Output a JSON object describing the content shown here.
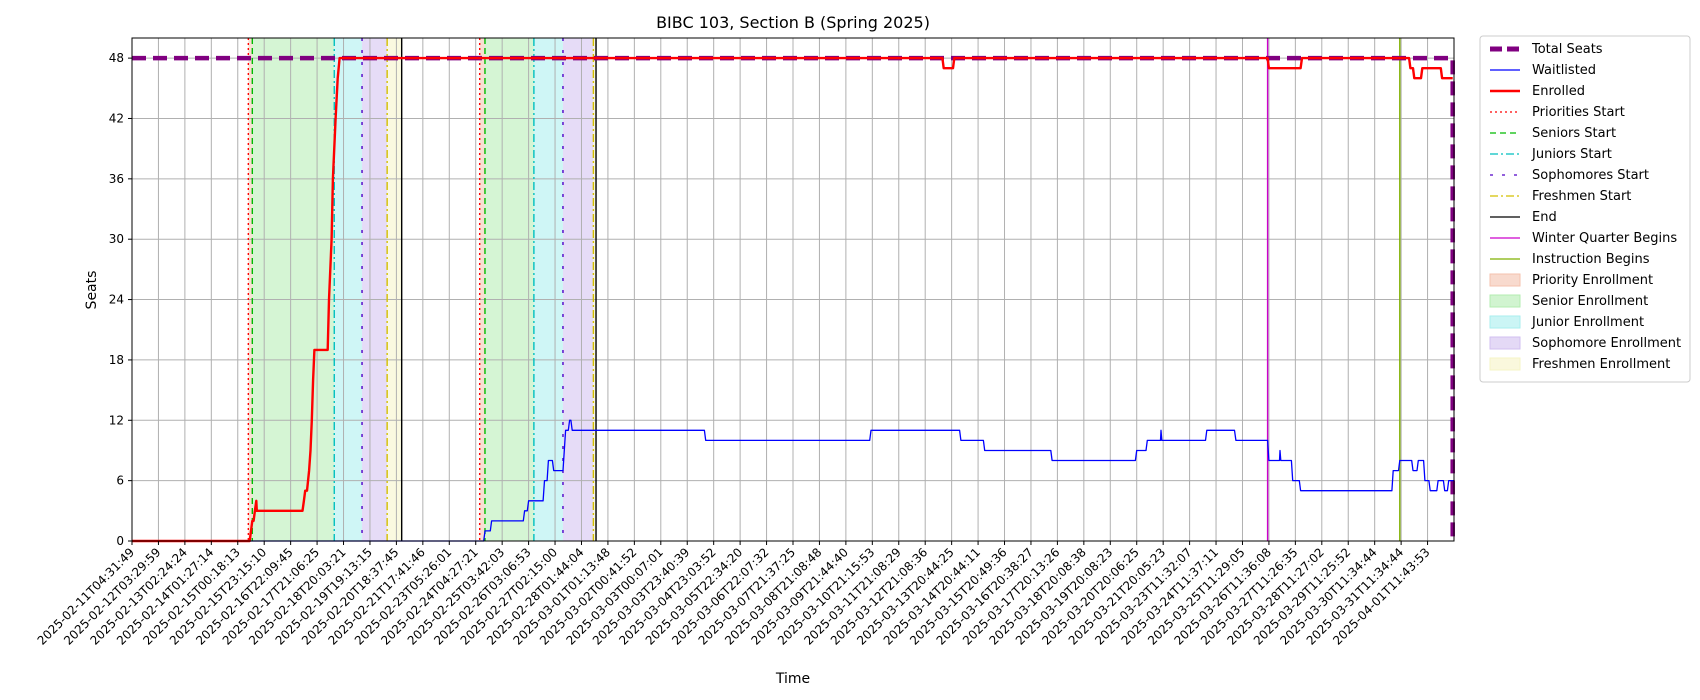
{
  "chart_data": {
    "type": "line",
    "title": "BIBC 103, Section B (Spring 2025)",
    "xlabel": "Time",
    "ylabel": "Seats",
    "ylim": [
      0,
      50
    ],
    "yticks": [
      0,
      6,
      12,
      18,
      24,
      30,
      36,
      42,
      48
    ],
    "grid": true,
    "legend_position": "outside-right",
    "x_tick_labels": [
      "2025-02-11T04:31:49",
      "2025-02-12T03:29:59",
      "2025-02-13T02:24:24",
      "2025-02-14T01:27:14",
      "2025-02-15T00:18:13",
      "2025-02-15T23:15:10",
      "2025-02-16T22:09:45",
      "2025-02-17T21:06:25",
      "2025-02-18T20:03:21",
      "2025-02-19T19:13:15",
      "2025-02-20T18:37:45",
      "2025-02-21T17:41:46",
      "2025-02-23T05:26:01",
      "2025-02-24T04:27:21",
      "2025-02-25T03:42:03",
      "2025-02-26T03:06:53",
      "2025-02-27T02:15:00",
      "2025-02-28T01:44:04",
      "2025-03-01T01:13:48",
      "2025-03-02T00:41:52",
      "2025-03-03T00:07:01",
      "2025-03-03T23:40:39",
      "2025-03-04T23:03:52",
      "2025-03-05T22:34:20",
      "2025-03-06T22:07:32",
      "2025-03-07T21:37:25",
      "2025-03-08T21:08:48",
      "2025-03-09T21:44:40",
      "2025-03-10T21:15:53",
      "2025-03-11T21:08:29",
      "2025-03-12T21:08:36",
      "2025-03-13T20:44:25",
      "2025-03-14T20:44:11",
      "2025-03-15T20:49:36",
      "2025-03-16T20:38:27",
      "2025-03-17T20:13:26",
      "2025-03-18T20:08:38",
      "2025-03-19T20:08:23",
      "2025-03-20T20:06:25",
      "2025-03-21T20:05:23",
      "2025-03-23T11:32:07",
      "2025-03-24T11:37:11",
      "2025-03-25T11:29:05",
      "2025-03-26T11:36:08",
      "2025-03-27T11:26:35",
      "2025-03-28T11:27:02",
      "2025-03-29T11:25:52",
      "2025-03-30T11:34:44",
      "2025-03-31T11:34:44",
      "2025-04-01T11:43:53"
    ],
    "x_range": [
      0,
      50
    ],
    "series": [
      {
        "name": "Total Seats",
        "color": "#800080",
        "dash": "dashed",
        "width": "thick",
        "points": [
          [
            0,
            48
          ],
          [
            49.95,
            48
          ],
          [
            49.95,
            0
          ]
        ]
      },
      {
        "name": "Waitlisted",
        "color": "#0000ff",
        "dash": "solid",
        "width": "thin",
        "points": [
          [
            0,
            0
          ],
          [
            13.3,
            0
          ],
          [
            13.35,
            1
          ],
          [
            13.55,
            1
          ],
          [
            13.6,
            2
          ],
          [
            14.8,
            2
          ],
          [
            14.85,
            3
          ],
          [
            14.95,
            3
          ],
          [
            15.0,
            4
          ],
          [
            15.55,
            4
          ],
          [
            15.6,
            6
          ],
          [
            15.7,
            6
          ],
          [
            15.75,
            8
          ],
          [
            15.9,
            8
          ],
          [
            15.95,
            7
          ],
          [
            16.3,
            7
          ],
          [
            16.35,
            9
          ],
          [
            16.4,
            11
          ],
          [
            16.5,
            11
          ],
          [
            16.55,
            12
          ],
          [
            16.6,
            12
          ],
          [
            16.65,
            11
          ],
          [
            21.65,
            11
          ],
          [
            21.7,
            10
          ],
          [
            27.9,
            10
          ],
          [
            27.95,
            11
          ],
          [
            31.3,
            11
          ],
          [
            31.35,
            10
          ],
          [
            32.2,
            10
          ],
          [
            32.25,
            9
          ],
          [
            34.75,
            9
          ],
          [
            34.8,
            8
          ],
          [
            37.95,
            8
          ],
          [
            38.0,
            9
          ],
          [
            38.35,
            9
          ],
          [
            38.4,
            10
          ],
          [
            38.9,
            10
          ],
          [
            38.92,
            11
          ],
          [
            38.95,
            10
          ],
          [
            40.6,
            10
          ],
          [
            40.65,
            11
          ],
          [
            41.7,
            11
          ],
          [
            41.75,
            10
          ],
          [
            42.95,
            10
          ],
          [
            43.0,
            8
          ],
          [
            43.4,
            8
          ],
          [
            43.42,
            9
          ],
          [
            43.45,
            8
          ],
          [
            43.85,
            8
          ],
          [
            43.9,
            6
          ],
          [
            44.15,
            6
          ],
          [
            44.2,
            5
          ],
          [
            47.65,
            5
          ],
          [
            47.7,
            7
          ],
          [
            47.9,
            7
          ],
          [
            47.95,
            8
          ],
          [
            48.4,
            8
          ],
          [
            48.45,
            7
          ],
          [
            48.6,
            7
          ],
          [
            48.65,
            8
          ],
          [
            48.85,
            8
          ],
          [
            48.9,
            6
          ],
          [
            49.05,
            6
          ],
          [
            49.1,
            5
          ],
          [
            49.35,
            5
          ],
          [
            49.4,
            6
          ],
          [
            49.6,
            6
          ],
          [
            49.65,
            5
          ],
          [
            49.75,
            5
          ],
          [
            49.8,
            6
          ],
          [
            50,
            6
          ]
        ]
      },
      {
        "name": "Enrolled",
        "color": "#ff0000",
        "dash": "solid",
        "width": "thick",
        "points": [
          [
            0,
            0
          ],
          [
            4.45,
            0
          ],
          [
            4.5,
            1
          ],
          [
            4.55,
            2
          ],
          [
            4.6,
            2
          ],
          [
            4.65,
            3
          ],
          [
            4.7,
            4
          ],
          [
            4.72,
            3
          ],
          [
            6.45,
            3
          ],
          [
            6.5,
            4
          ],
          [
            6.55,
            5
          ],
          [
            6.62,
            5
          ],
          [
            6.7,
            7
          ],
          [
            6.75,
            9
          ],
          [
            6.8,
            12
          ],
          [
            6.85,
            16
          ],
          [
            6.9,
            19
          ],
          [
            7.4,
            19
          ],
          [
            7.45,
            24
          ],
          [
            7.55,
            30
          ],
          [
            7.6,
            36
          ],
          [
            7.7,
            42
          ],
          [
            7.78,
            46
          ],
          [
            7.85,
            48
          ],
          [
            30.65,
            48
          ],
          [
            30.7,
            47
          ],
          [
            31.05,
            47
          ],
          [
            31.1,
            48
          ],
          [
            42.95,
            48
          ],
          [
            43.0,
            47
          ],
          [
            44.2,
            47
          ],
          [
            44.25,
            48
          ],
          [
            48.3,
            48
          ],
          [
            48.35,
            47
          ],
          [
            48.45,
            47
          ],
          [
            48.5,
            46
          ],
          [
            48.75,
            46
          ],
          [
            48.8,
            47
          ],
          [
            49.5,
            47
          ],
          [
            49.55,
            46
          ],
          [
            49.95,
            46
          ]
        ]
      }
    ],
    "vertical_lines": [
      {
        "name": "Priorities Start",
        "color": "#ff0000",
        "dash": "dotted",
        "x": [
          4.4,
          13.15
        ]
      },
      {
        "name": "Seniors Start",
        "color": "#00bb00",
        "dash": "dashed",
        "x": [
          4.55,
          13.35
        ]
      },
      {
        "name": "Juniors Start",
        "color": "#00bfbf",
        "dash": "dashdot",
        "x": [
          7.65,
          15.2
        ]
      },
      {
        "name": "Sophomores Start",
        "color": "#5000c8",
        "dash": "dashdot-sparse",
        "x": [
          8.7,
          16.3
        ]
      },
      {
        "name": "Freshmen Start",
        "color": "#d4c000",
        "dash": "dashdot",
        "x": [
          9.65,
          17.45
        ]
      },
      {
        "name": "End",
        "color": "#000000",
        "dash": "solid",
        "x": [
          10.2,
          17.55
        ]
      },
      {
        "name": "Winter Quarter Begins",
        "color": "#cc00cc",
        "dash": "solid",
        "x": [
          42.95
        ]
      },
      {
        "name": "Instruction Begins",
        "color": "#7fb000",
        "dash": "solid",
        "x": [
          47.95
        ]
      }
    ],
    "spans": [
      {
        "name": "Priority Enrollment",
        "color": "#f4c2ae",
        "ranges": [
          [
            4.4,
            4.55
          ],
          [
            13.15,
            13.35
          ]
        ]
      },
      {
        "name": "Senior Enrollment",
        "color": "#b3ecb0",
        "ranges": [
          [
            4.55,
            7.65
          ],
          [
            13.35,
            15.2
          ]
        ]
      },
      {
        "name": "Junior Enrollment",
        "color": "#a8eeee",
        "ranges": [
          [
            7.65,
            8.7
          ],
          [
            15.2,
            16.3
          ]
        ]
      },
      {
        "name": "Sophomore Enrollment",
        "color": "#d2bff0",
        "ranges": [
          [
            8.7,
            9.65
          ],
          [
            16.3,
            17.45
          ]
        ]
      },
      {
        "name": "Freshmen Enrollment",
        "color": "#f6f4c6",
        "ranges": [
          [
            9.65,
            10.2
          ],
          [
            17.45,
            17.55
          ]
        ]
      }
    ],
    "legend": [
      {
        "label": "Total Seats",
        "kind": "line",
        "color": "#800080",
        "dash": "dashed",
        "width": "thick"
      },
      {
        "label": "Waitlisted",
        "kind": "line",
        "color": "#0000ff",
        "dash": "solid",
        "width": "thin"
      },
      {
        "label": "Enrolled",
        "kind": "line",
        "color": "#ff0000",
        "dash": "solid",
        "width": "thick"
      },
      {
        "label": "Priorities Start",
        "kind": "line",
        "color": "#ff0000",
        "dash": "dotted",
        "width": "thin"
      },
      {
        "label": "Seniors Start",
        "kind": "line",
        "color": "#00bb00",
        "dash": "dashed",
        "width": "thin"
      },
      {
        "label": "Juniors Start",
        "kind": "line",
        "color": "#00bfbf",
        "dash": "dashdot",
        "width": "thin"
      },
      {
        "label": "Sophomores Start",
        "kind": "line",
        "color": "#5000c8",
        "dash": "dashdot-sparse",
        "width": "thin"
      },
      {
        "label": "Freshmen Start",
        "kind": "line",
        "color": "#d4c000",
        "dash": "dashdot",
        "width": "thin"
      },
      {
        "label": "End",
        "kind": "line",
        "color": "#000000",
        "dash": "solid",
        "width": "thin"
      },
      {
        "label": "Winter Quarter Begins",
        "kind": "line",
        "color": "#cc00cc",
        "dash": "solid",
        "width": "thin"
      },
      {
        "label": "Instruction Begins",
        "kind": "line",
        "color": "#7fb000",
        "dash": "solid",
        "width": "thin"
      },
      {
        "label": "Priority Enrollment",
        "kind": "patch",
        "color": "#f4c2ae"
      },
      {
        "label": "Senior Enrollment",
        "kind": "patch",
        "color": "#b3ecb0"
      },
      {
        "label": "Junior Enrollment",
        "kind": "patch",
        "color": "#a8eeee"
      },
      {
        "label": "Sophomore Enrollment",
        "kind": "patch",
        "color": "#d2bff0"
      },
      {
        "label": "Freshmen Enrollment",
        "kind": "patch",
        "color": "#f6f4c6"
      }
    ]
  }
}
